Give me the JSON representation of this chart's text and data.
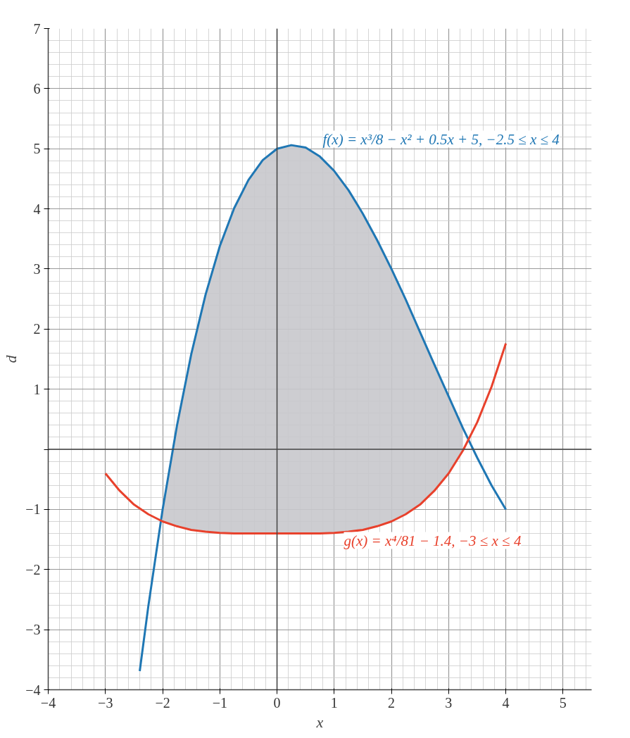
{
  "chart_data": {
    "type": "line",
    "xlabel": "x",
    "ylabel": "d",
    "xlim": [
      -4,
      5.5
    ],
    "ylim": [
      -4,
      7
    ],
    "xticks": [
      -4,
      -3,
      -2,
      -1,
      0,
      1,
      2,
      3,
      4,
      5
    ],
    "yticks": [
      -4,
      -3,
      -2,
      -1,
      {
        "value": 0,
        "label": null
      },
      1,
      2,
      3,
      4,
      5,
      6,
      7
    ],
    "grid": true,
    "marker": "none",
    "line_style": "solid",
    "series": [
      {
        "color": "#1f77b4",
        "x": [
          -2.4,
          -2.25,
          -2,
          -1.75,
          -1.5,
          -1.25,
          -1,
          -0.75,
          -0.5,
          -0.25,
          0,
          0.25,
          0.5,
          0.75,
          1,
          1.25,
          1.5,
          1.75,
          2,
          2.25,
          2.5,
          2.75,
          3,
          3.25,
          3.5,
          3.75,
          4
        ],
        "values": [
          -3.69,
          -2.61,
          -1,
          0.39,
          1.58,
          2.57,
          3.38,
          4.01,
          4.48,
          4.81,
          5,
          5.06,
          5.02,
          4.87,
          4.63,
          4.31,
          3.92,
          3.48,
          3,
          2.49,
          1.95,
          1.41,
          0.88,
          0.35,
          -0.14,
          -0.6,
          -1
        ],
        "lower": [
          null,
          null,
          -1.2,
          -1.28,
          -1.34,
          -1.37,
          -1.39,
          -1.4,
          -1.4,
          -1.4,
          -1.4,
          -1.4,
          -1.4,
          -1.4,
          -1.39,
          -1.37,
          -1.34,
          -1.28,
          -1.2,
          -1.08,
          -0.92,
          -0.69,
          -0.4,
          -0.02,
          null,
          null,
          null
        ],
        "upper": [
          null,
          null,
          -1,
          0.39,
          1.58,
          2.57,
          3.38,
          4.01,
          4.48,
          4.81,
          5,
          5.06,
          5.02,
          4.87,
          4.63,
          4.31,
          3.92,
          3.48,
          3,
          2.49,
          1.95,
          1.41,
          0.88,
          0.35,
          null,
          null,
          null
        ]
      },
      {
        "color": "#e8412c",
        "x": [
          -3,
          -2.75,
          -2.5,
          -2.25,
          -2,
          -1.75,
          -1.5,
          -1.25,
          -1,
          -0.75,
          -0.5,
          -0.25,
          0,
          0.25,
          0.5,
          0.75,
          1,
          1.25,
          1.5,
          1.75,
          2,
          2.25,
          2.5,
          2.75,
          3,
          3.25,
          3.5,
          3.75,
          4
        ],
        "values": [
          -0.4,
          -0.69,
          -0.92,
          -1.08,
          -1.2,
          -1.28,
          -1.34,
          -1.37,
          -1.39,
          -1.4,
          -1.4,
          -1.4,
          -1.4,
          -1.4,
          -1.4,
          -1.4,
          -1.39,
          -1.37,
          -1.34,
          -1.28,
          -1.2,
          -1.08,
          -0.92,
          -0.69,
          -0.4,
          -0.02,
          0.45,
          1.04,
          1.76
        ]
      }
    ],
    "annotations": [
      "f(x) = x³/8 − x² + 0.5x + 5, −2.5 ≤ x ≤ 4",
      "g(x) = x⁴/81 − 1.4, −3 ≤ x ≤ 4"
    ]
  }
}
